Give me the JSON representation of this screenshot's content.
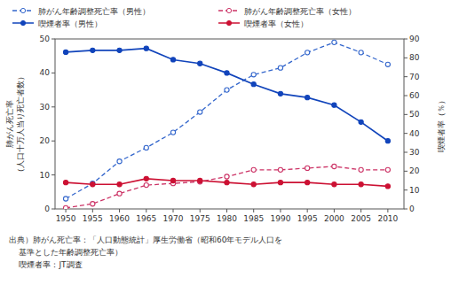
{
  "chart_data": {
    "type": "line",
    "x": [
      1950,
      1955,
      1960,
      1965,
      1970,
      1975,
      1980,
      1985,
      1990,
      1995,
      2000,
      2005,
      2010
    ],
    "xlim": [
      1948,
      2013
    ],
    "xticks": [
      1950,
      1955,
      1960,
      1965,
      1970,
      1975,
      1980,
      1985,
      1990,
      1995,
      2000,
      2005,
      2010
    ],
    "ylim": [
      0,
      50
    ],
    "yticks": [
      0,
      10,
      20,
      30,
      40,
      50
    ],
    "y2lim": [
      0,
      90
    ],
    "y2ticks": [
      0,
      10,
      20,
      30,
      40,
      50,
      60,
      70,
      80,
      90
    ],
    "ylabel": "肺がん死亡率\n（人口十万人当り死亡者数）",
    "y2label": "喫煙者率（％）",
    "grid": false,
    "legend": "top",
    "series": [
      {
        "name": "肺がん年齢調整死亡率（男性）",
        "color": "#3366cc",
        "line_style": "dashed",
        "marker": "open-circle",
        "values": [
          3.0,
          7.5,
          14.0,
          18.0,
          22.5,
          28.5,
          35.0,
          39.5,
          41.5,
          46.0,
          49.0,
          46.0,
          42.5
        ]
      },
      {
        "name": "肺がん年齢調整死亡率（女性）",
        "color": "#cc3366",
        "line_style": "dashed",
        "marker": "open-circle",
        "values": [
          0.3,
          1.5,
          4.5,
          7.0,
          7.5,
          8.0,
          9.5,
          11.5,
          11.5,
          12.0,
          12.5,
          11.5,
          11.5
        ]
      },
      {
        "name": "喫煙者率（男性）",
        "color": "#1144bb",
        "line_style": "solid",
        "marker": "circle",
        "axis": "y2",
        "values": [
          83,
          84,
          84,
          85,
          79,
          77,
          72,
          66,
          61,
          59,
          55,
          46,
          36
        ]
      },
      {
        "name": "喫煙者率（女性）",
        "color": "#cc1133",
        "line_style": "solid",
        "marker": "circle",
        "axis": "y2",
        "values": [
          14,
          13,
          13,
          16,
          15,
          15,
          14,
          13,
          14,
          14,
          13,
          13,
          12
        ]
      }
    ],
    "annotations": [
      "出典）肺がん死亡率：「人口動態統計」厚生労働省（昭和60年モデル人口を",
      "    基準とした年齢調整死亡率）",
      "    喫煙者率：JT調査"
    ]
  }
}
